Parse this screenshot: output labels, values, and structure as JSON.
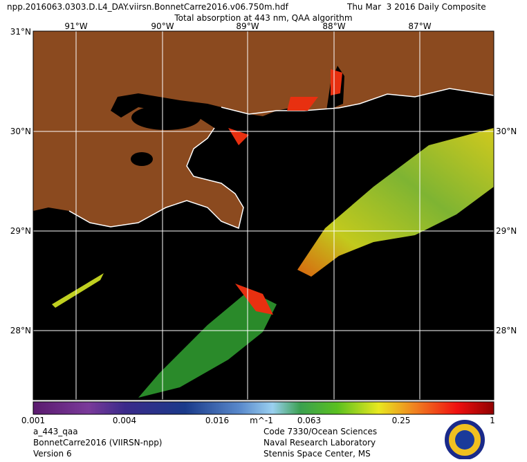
{
  "header": {
    "file": "npp.2016063.0303.D.L4_DAY.viirsn.BonnetCarre2016.v06.750m.hdf",
    "date": "Thu Mar  3 2016 Daily Composite",
    "title": "Total absorption at 443 nm, QAA algorithm"
  },
  "map": {
    "lon_labels": [
      "91°W",
      "90°W",
      "89°W",
      "88°W",
      "87°W"
    ],
    "lat_labels_left": [
      "31°N",
      "30°N",
      "29°N",
      "28°N"
    ],
    "lat_labels_right": [
      "30°N",
      "29°N",
      "28°N"
    ]
  },
  "colorbar": {
    "ticks": [
      "0.001",
      "0.004",
      "0.016",
      "0.063",
      "0.25",
      "1"
    ],
    "units": "m^-1"
  },
  "footer": {
    "left": [
      "a_443_qaa",
      "BonnetCarre2016 (VIIRSN-npp)",
      "Version 6"
    ],
    "right": [
      "Code 7330/Ocean Sciences",
      "Naval Research Laboratory",
      "Stennis Space Center, MS"
    ]
  }
}
